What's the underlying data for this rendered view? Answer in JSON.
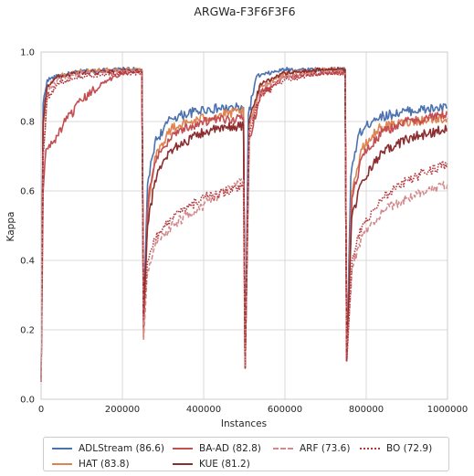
{
  "chart_data": {
    "type": "line",
    "title": "ARGWa-F3F6F3F6",
    "xlabel": "Instances",
    "ylabel": "Kappa",
    "xlim": [
      0,
      1000000
    ],
    "ylim": [
      0,
      1.0
    ],
    "xticks": [
      0,
      200000,
      400000,
      600000,
      800000,
      1000000
    ],
    "yticks": [
      0.0,
      0.2,
      0.4,
      0.6,
      0.8,
      1.0
    ],
    "grid": true,
    "legend_position": "bottom",
    "drift_points": [
      250000,
      500000,
      750000
    ],
    "series": [
      {
        "name": "ADLStream (86.6)",
        "color": "#4c72b0",
        "dash": "solid",
        "x": [
          0,
          5000,
          15000,
          40000,
          100000,
          200000,
          248000,
          252000,
          262000,
          280000,
          320000,
          400000,
          498000,
          502000,
          510000,
          530000,
          600000,
          700000,
          748000,
          752000,
          762000,
          780000,
          820000,
          900000,
          1000000
        ],
        "y": [
          0.05,
          0.85,
          0.92,
          0.93,
          0.945,
          0.95,
          0.95,
          0.22,
          0.62,
          0.74,
          0.81,
          0.835,
          0.84,
          0.09,
          0.82,
          0.93,
          0.95,
          0.95,
          0.95,
          0.11,
          0.64,
          0.76,
          0.81,
          0.83,
          0.84
        ]
      },
      {
        "name": "HAT (83.8)",
        "color": "#dd8452",
        "dash": "solid",
        "x": [
          0,
          5000,
          15000,
          40000,
          100000,
          200000,
          248000,
          252000,
          262000,
          280000,
          320000,
          400000,
          498000,
          502000,
          512000,
          540000,
          600000,
          700000,
          748000,
          752000,
          764000,
          790000,
          830000,
          900000,
          1000000
        ],
        "y": [
          0.05,
          0.78,
          0.9,
          0.93,
          0.945,
          0.95,
          0.95,
          0.18,
          0.55,
          0.7,
          0.78,
          0.81,
          0.83,
          0.09,
          0.78,
          0.9,
          0.94,
          0.95,
          0.95,
          0.11,
          0.6,
          0.72,
          0.78,
          0.8,
          0.81
        ]
      },
      {
        "name": "BA-AD (82.8)",
        "color": "#c44e52",
        "dash": "solid",
        "x": [
          0,
          5000,
          12000,
          30000,
          60000,
          100000,
          150000,
          200000,
          248000,
          252000,
          264000,
          285000,
          330000,
          400000,
          498000,
          502000,
          512000,
          540000,
          600000,
          700000,
          748000,
          752000,
          765000,
          790000,
          840000,
          900000,
          1000000
        ],
        "y": [
          0.05,
          0.6,
          0.72,
          0.74,
          0.8,
          0.86,
          0.91,
          0.94,
          0.945,
          0.2,
          0.58,
          0.7,
          0.77,
          0.8,
          0.81,
          0.09,
          0.75,
          0.88,
          0.93,
          0.94,
          0.94,
          0.11,
          0.58,
          0.7,
          0.77,
          0.8,
          0.82
        ]
      },
      {
        "name": "KUE (81.2)",
        "color": "#8c2d2f",
        "dash": "solid",
        "x": [
          0,
          5000,
          15000,
          40000,
          100000,
          200000,
          248000,
          252000,
          262000,
          280000,
          320000,
          400000,
          498000,
          502000,
          512000,
          540000,
          600000,
          700000,
          748000,
          752000,
          764000,
          790000,
          840000,
          900000,
          1000000
        ],
        "y": [
          0.05,
          0.8,
          0.9,
          0.93,
          0.94,
          0.945,
          0.945,
          0.25,
          0.5,
          0.63,
          0.72,
          0.77,
          0.79,
          0.09,
          0.8,
          0.91,
          0.94,
          0.95,
          0.95,
          0.11,
          0.52,
          0.63,
          0.71,
          0.75,
          0.78
        ]
      },
      {
        "name": "ARF (73.6)",
        "color": "#d48a8c",
        "dash": "dashed",
        "x": [
          0,
          5000,
          15000,
          40000,
          100000,
          200000,
          248000,
          252000,
          262000,
          280000,
          320000,
          400000,
          498000,
          502000,
          512000,
          540000,
          600000,
          700000,
          748000,
          752000,
          765000,
          790000,
          840000,
          900000,
          1000000
        ],
        "y": [
          0.05,
          0.7,
          0.88,
          0.92,
          0.94,
          0.945,
          0.945,
          0.17,
          0.37,
          0.44,
          0.5,
          0.56,
          0.63,
          0.09,
          0.78,
          0.89,
          0.93,
          0.94,
          0.94,
          0.11,
          0.38,
          0.47,
          0.54,
          0.58,
          0.62
        ]
      },
      {
        "name": "BO (72.9)",
        "color": "#b5373b",
        "dash": "dotted",
        "x": [
          0,
          5000,
          15000,
          40000,
          100000,
          200000,
          248000,
          252000,
          262000,
          280000,
          320000,
          400000,
          498000,
          502000,
          512000,
          540000,
          600000,
          700000,
          748000,
          752000,
          765000,
          790000,
          840000,
          900000,
          1000000
        ],
        "y": [
          0.05,
          0.7,
          0.87,
          0.91,
          0.93,
          0.94,
          0.94,
          0.24,
          0.4,
          0.46,
          0.52,
          0.58,
          0.61,
          0.09,
          0.76,
          0.88,
          0.92,
          0.94,
          0.94,
          0.11,
          0.4,
          0.5,
          0.58,
          0.63,
          0.68
        ]
      }
    ]
  }
}
